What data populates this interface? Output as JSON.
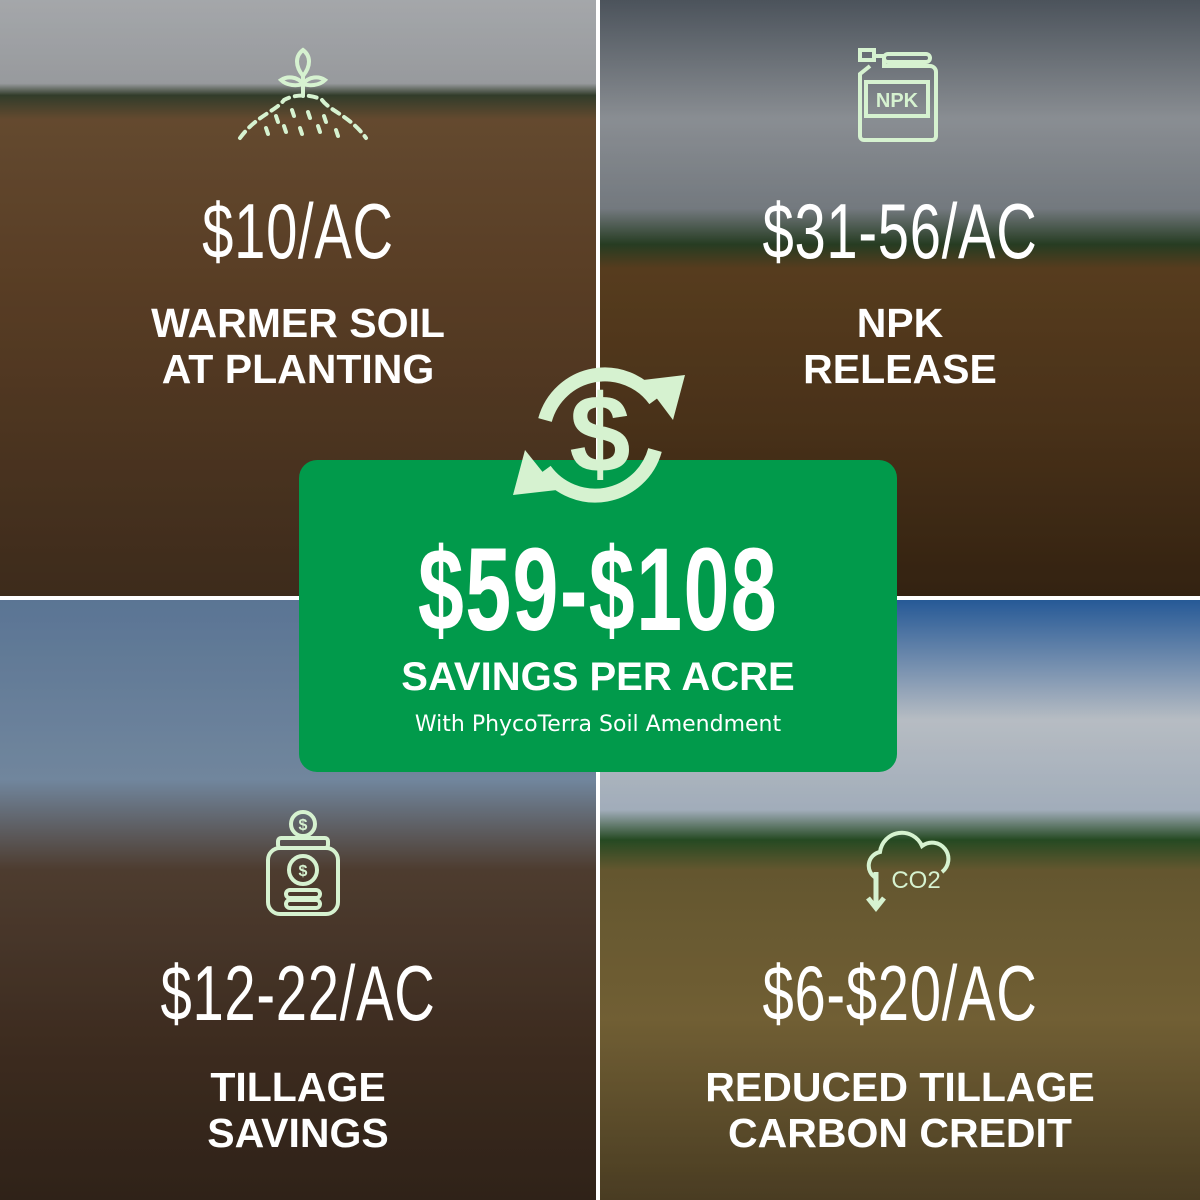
{
  "center": {
    "total": "$59-$108",
    "headline": "SAVINGS PER ACRE",
    "subtitle": "With PhycoTerra Soil Amendment",
    "icon": "dollar-cycle-icon",
    "accent": "#019a4b",
    "icon_color": "#d6f2d0"
  },
  "tiles": [
    {
      "amount": "$10/AC",
      "label_line1": "WARMER SOIL",
      "label_line2": "AT PLANTING",
      "icon": "sprout-soil-icon"
    },
    {
      "amount": "$31-56/AC",
      "label_line1": "NPK",
      "label_line2": "RELEASE",
      "icon": "fertilizer-jug-icon",
      "icon_text": "NPK"
    },
    {
      "amount": "$12-22/AC",
      "label_line1": "TILLAGE",
      "label_line2": "SAVINGS",
      "icon": "money-jar-icon"
    },
    {
      "amount": "$6-$20/AC",
      "label_line1": "REDUCED TILLAGE",
      "label_line2": "CARBON CREDIT",
      "icon": "co2-cloud-icon",
      "icon_text": "CO2"
    }
  ]
}
